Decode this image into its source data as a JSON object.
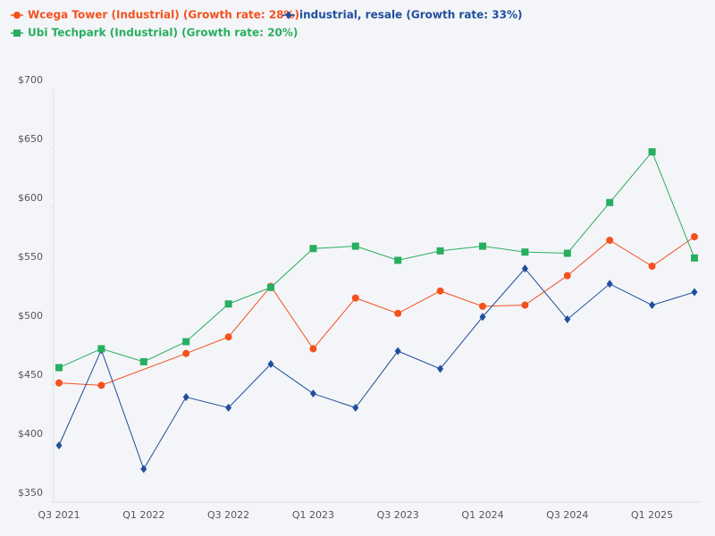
{
  "chart_data": {
    "type": "line",
    "categories": [
      "Q3 2021",
      null,
      "Q1 2022",
      null,
      "Q3 2022",
      null,
      "Q1 2023",
      null,
      "Q3 2023",
      null,
      "Q1 2024",
      null,
      "Q3 2024",
      null,
      "Q1 2025",
      null
    ],
    "series": [
      {
        "name": "Wcega Tower (Industrial) (Growth rate: 28%)",
        "color": "#f4511e",
        "marker": "circle",
        "values": [
          451,
          449,
          null,
          476,
          490,
          533,
          480,
          523,
          510,
          529,
          516,
          517,
          542,
          572,
          550,
          575
        ]
      },
      {
        "name": "industrial, resale (Growth rate: 33%)",
        "color": "#1f4e9c",
        "marker": "diamond",
        "values": [
          398,
          479,
          378,
          439,
          430,
          467,
          442,
          430,
          478,
          463,
          507,
          548,
          505,
          535,
          517,
          528
        ]
      },
      {
        "name": "Ubi Techpark (Industrial) (Growth rate: 20%)",
        "color": "#27ae60",
        "marker": "square",
        "values": [
          464,
          480,
          469,
          486,
          518,
          532,
          565,
          567,
          555,
          563,
          567,
          562,
          561,
          604,
          647,
          557
        ]
      }
    ],
    "ylim": [
      350,
      700
    ],
    "yticks": [
      {
        "value": 350,
        "label": "$350"
      },
      {
        "value": 400,
        "label": "$400"
      },
      {
        "value": 450,
        "label": "$450"
      },
      {
        "value": 500,
        "label": "$500"
      },
      {
        "value": 550,
        "label": "$550"
      },
      {
        "value": 600,
        "label": "$600"
      },
      {
        "value": 650,
        "label": "$650"
      },
      {
        "value": 700,
        "label": "$700"
      }
    ],
    "grid": false
  }
}
